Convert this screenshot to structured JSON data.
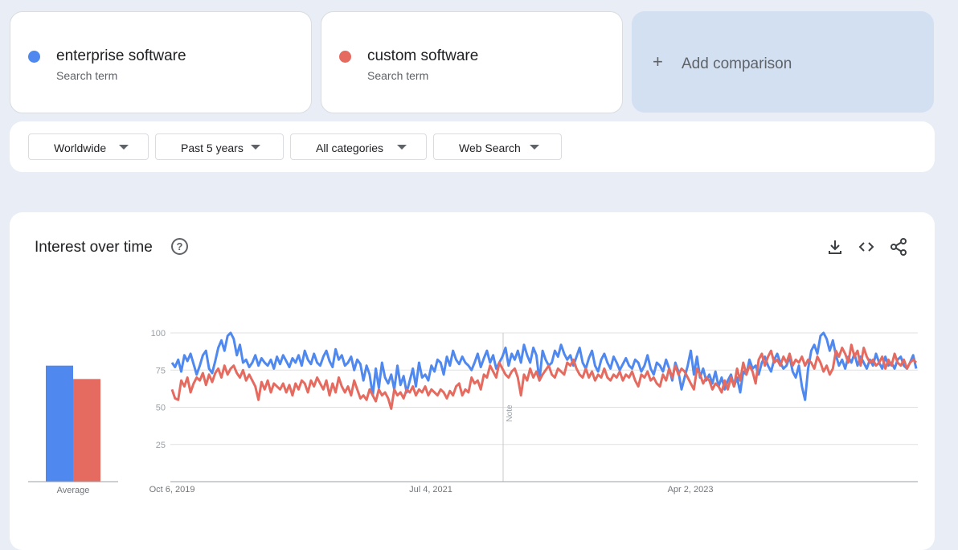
{
  "terms": [
    {
      "name": "enterprise software",
      "sub": "Search term",
      "color": "#4f89f0"
    },
    {
      "name": "custom software",
      "sub": "Search term",
      "color": "#e56b60"
    }
  ],
  "add_comparison": {
    "label": "Add comparison",
    "icon": "plus-icon"
  },
  "filters": {
    "region": "Worldwide",
    "period": "Past 5 years",
    "category": "All categories",
    "search_type": "Web Search"
  },
  "chart_section": {
    "title": "Interest over time",
    "icons": [
      "help-icon",
      "download-icon",
      "embed-code-icon",
      "share-icon"
    ]
  },
  "chart_data": [
    {
      "type": "bar",
      "categories": [
        "Average"
      ],
      "series": [
        {
          "name": "enterprise software",
          "values": [
            78
          ]
        },
        {
          "name": "custom software",
          "values": [
            69
          ]
        }
      ],
      "ylim": [
        0,
        100
      ]
    },
    {
      "type": "line",
      "x_tick_labels": [
        "Oct 6, 2019",
        "Jul 4, 2021",
        "Apr 2, 2023"
      ],
      "y_ticks": [
        25,
        50,
        75,
        100
      ],
      "ylim": [
        0,
        100
      ],
      "grid": true,
      "annotations": [
        {
          "label": "Note",
          "x": "Jul 4, 2021"
        }
      ],
      "series": [
        {
          "name": "enterprise software",
          "color": "#4f89f0",
          "values": [
            80,
            77,
            82,
            74,
            85,
            81,
            86,
            79,
            72,
            78,
            85,
            88,
            76,
            73,
            81,
            90,
            95,
            88,
            98,
            100,
            96,
            85,
            92,
            80,
            82,
            77,
            80,
            85,
            78,
            83,
            80,
            78,
            82,
            76,
            84,
            79,
            85,
            81,
            77,
            83,
            80,
            85,
            78,
            88,
            82,
            79,
            86,
            80,
            78,
            84,
            88,
            81,
            77,
            89,
            82,
            85,
            78,
            80,
            84,
            75,
            82,
            79,
            68,
            78,
            72,
            58,
            76,
            63,
            80,
            70,
            66,
            72,
            62,
            78,
            65,
            71,
            60,
            68,
            76,
            64,
            80,
            70,
            72,
            68,
            78,
            74,
            82,
            80,
            72,
            84,
            78,
            88,
            82,
            79,
            84,
            80,
            78,
            75,
            80,
            86,
            77,
            83,
            88,
            80,
            85,
            76,
            80,
            84,
            90,
            78,
            86,
            82,
            88,
            80,
            92,
            85,
            80,
            90,
            85,
            68,
            88,
            82,
            78,
            80,
            88,
            84,
            92,
            86,
            82,
            85,
            78,
            84,
            90,
            80,
            76,
            83,
            88,
            78,
            74,
            82,
            86,
            80,
            76,
            84,
            80,
            75,
            79,
            83,
            78,
            76,
            82,
            80,
            74,
            78,
            85,
            76,
            72,
            80,
            78,
            74,
            82,
            76,
            68,
            80,
            74,
            62,
            70,
            78,
            88,
            72,
            84,
            70,
            76,
            68,
            72,
            66,
            74,
            64,
            70,
            62,
            68,
            72,
            64,
            70,
            60,
            74,
            72,
            82,
            76,
            78,
            72,
            80,
            84,
            78,
            74,
            82,
            86,
            80,
            76,
            78,
            84,
            74,
            70,
            78,
            64,
            55,
            76,
            88,
            92,
            86,
            98,
            100,
            96,
            88,
            95,
            85,
            78,
            82,
            76,
            84,
            80,
            86,
            78,
            84,
            80,
            76,
            82,
            78,
            86,
            80,
            76,
            84,
            78,
            80,
            76,
            82,
            84,
            78,
            76,
            80,
            85,
            76
          ]
        },
        {
          "name": "custom software",
          "color": "#e56b60",
          "values": [
            62,
            56,
            55,
            68,
            64,
            70,
            60,
            66,
            70,
            68,
            73,
            65,
            72,
            67,
            73,
            76,
            70,
            78,
            72,
            76,
            78,
            73,
            70,
            75,
            68,
            72,
            68,
            64,
            55,
            67,
            62,
            68,
            60,
            66,
            64,
            62,
            66,
            60,
            65,
            58,
            66,
            62,
            68,
            66,
            60,
            68,
            64,
            70,
            66,
            62,
            68,
            58,
            66,
            60,
            70,
            64,
            60,
            64,
            58,
            68,
            62,
            56,
            58,
            55,
            62,
            58,
            54,
            62,
            58,
            60,
            56,
            49,
            62,
            58,
            60,
            56,
            62,
            60,
            64,
            58,
            62,
            60,
            64,
            58,
            62,
            60,
            58,
            62,
            60,
            56,
            61,
            58,
            64,
            66,
            58,
            62,
            60,
            70,
            66,
            68,
            62,
            72,
            70,
            78,
            74,
            70,
            80,
            76,
            72,
            70,
            74,
            76,
            70,
            58,
            72,
            68,
            76,
            70,
            74,
            68,
            72,
            75,
            78,
            72,
            70,
            76,
            74,
            72,
            80,
            78,
            82,
            76,
            72,
            70,
            76,
            70,
            74,
            68,
            72,
            70,
            76,
            70,
            68,
            72,
            70,
            74,
            68,
            72,
            70,
            74,
            68,
            64,
            72,
            70,
            74,
            68,
            70,
            66,
            64,
            72,
            68,
            76,
            70,
            78,
            72,
            76,
            74,
            70,
            66,
            62,
            76,
            72,
            66,
            70,
            68,
            62,
            66,
            64,
            60,
            68,
            62,
            70,
            64,
            76,
            68,
            80,
            72,
            78,
            74,
            66,
            82,
            86,
            78,
            84,
            88,
            80,
            82,
            78,
            84,
            80,
            86,
            78,
            82,
            80,
            84,
            78,
            82,
            80,
            76,
            84,
            80,
            74,
            78,
            72,
            76,
            88,
            84,
            90,
            86,
            80,
            92,
            84,
            88,
            78,
            90,
            84,
            80,
            82,
            78,
            80,
            84,
            76,
            82,
            78,
            86,
            80,
            78,
            82,
            76,
            80,
            82,
            80
          ]
        }
      ]
    }
  ]
}
